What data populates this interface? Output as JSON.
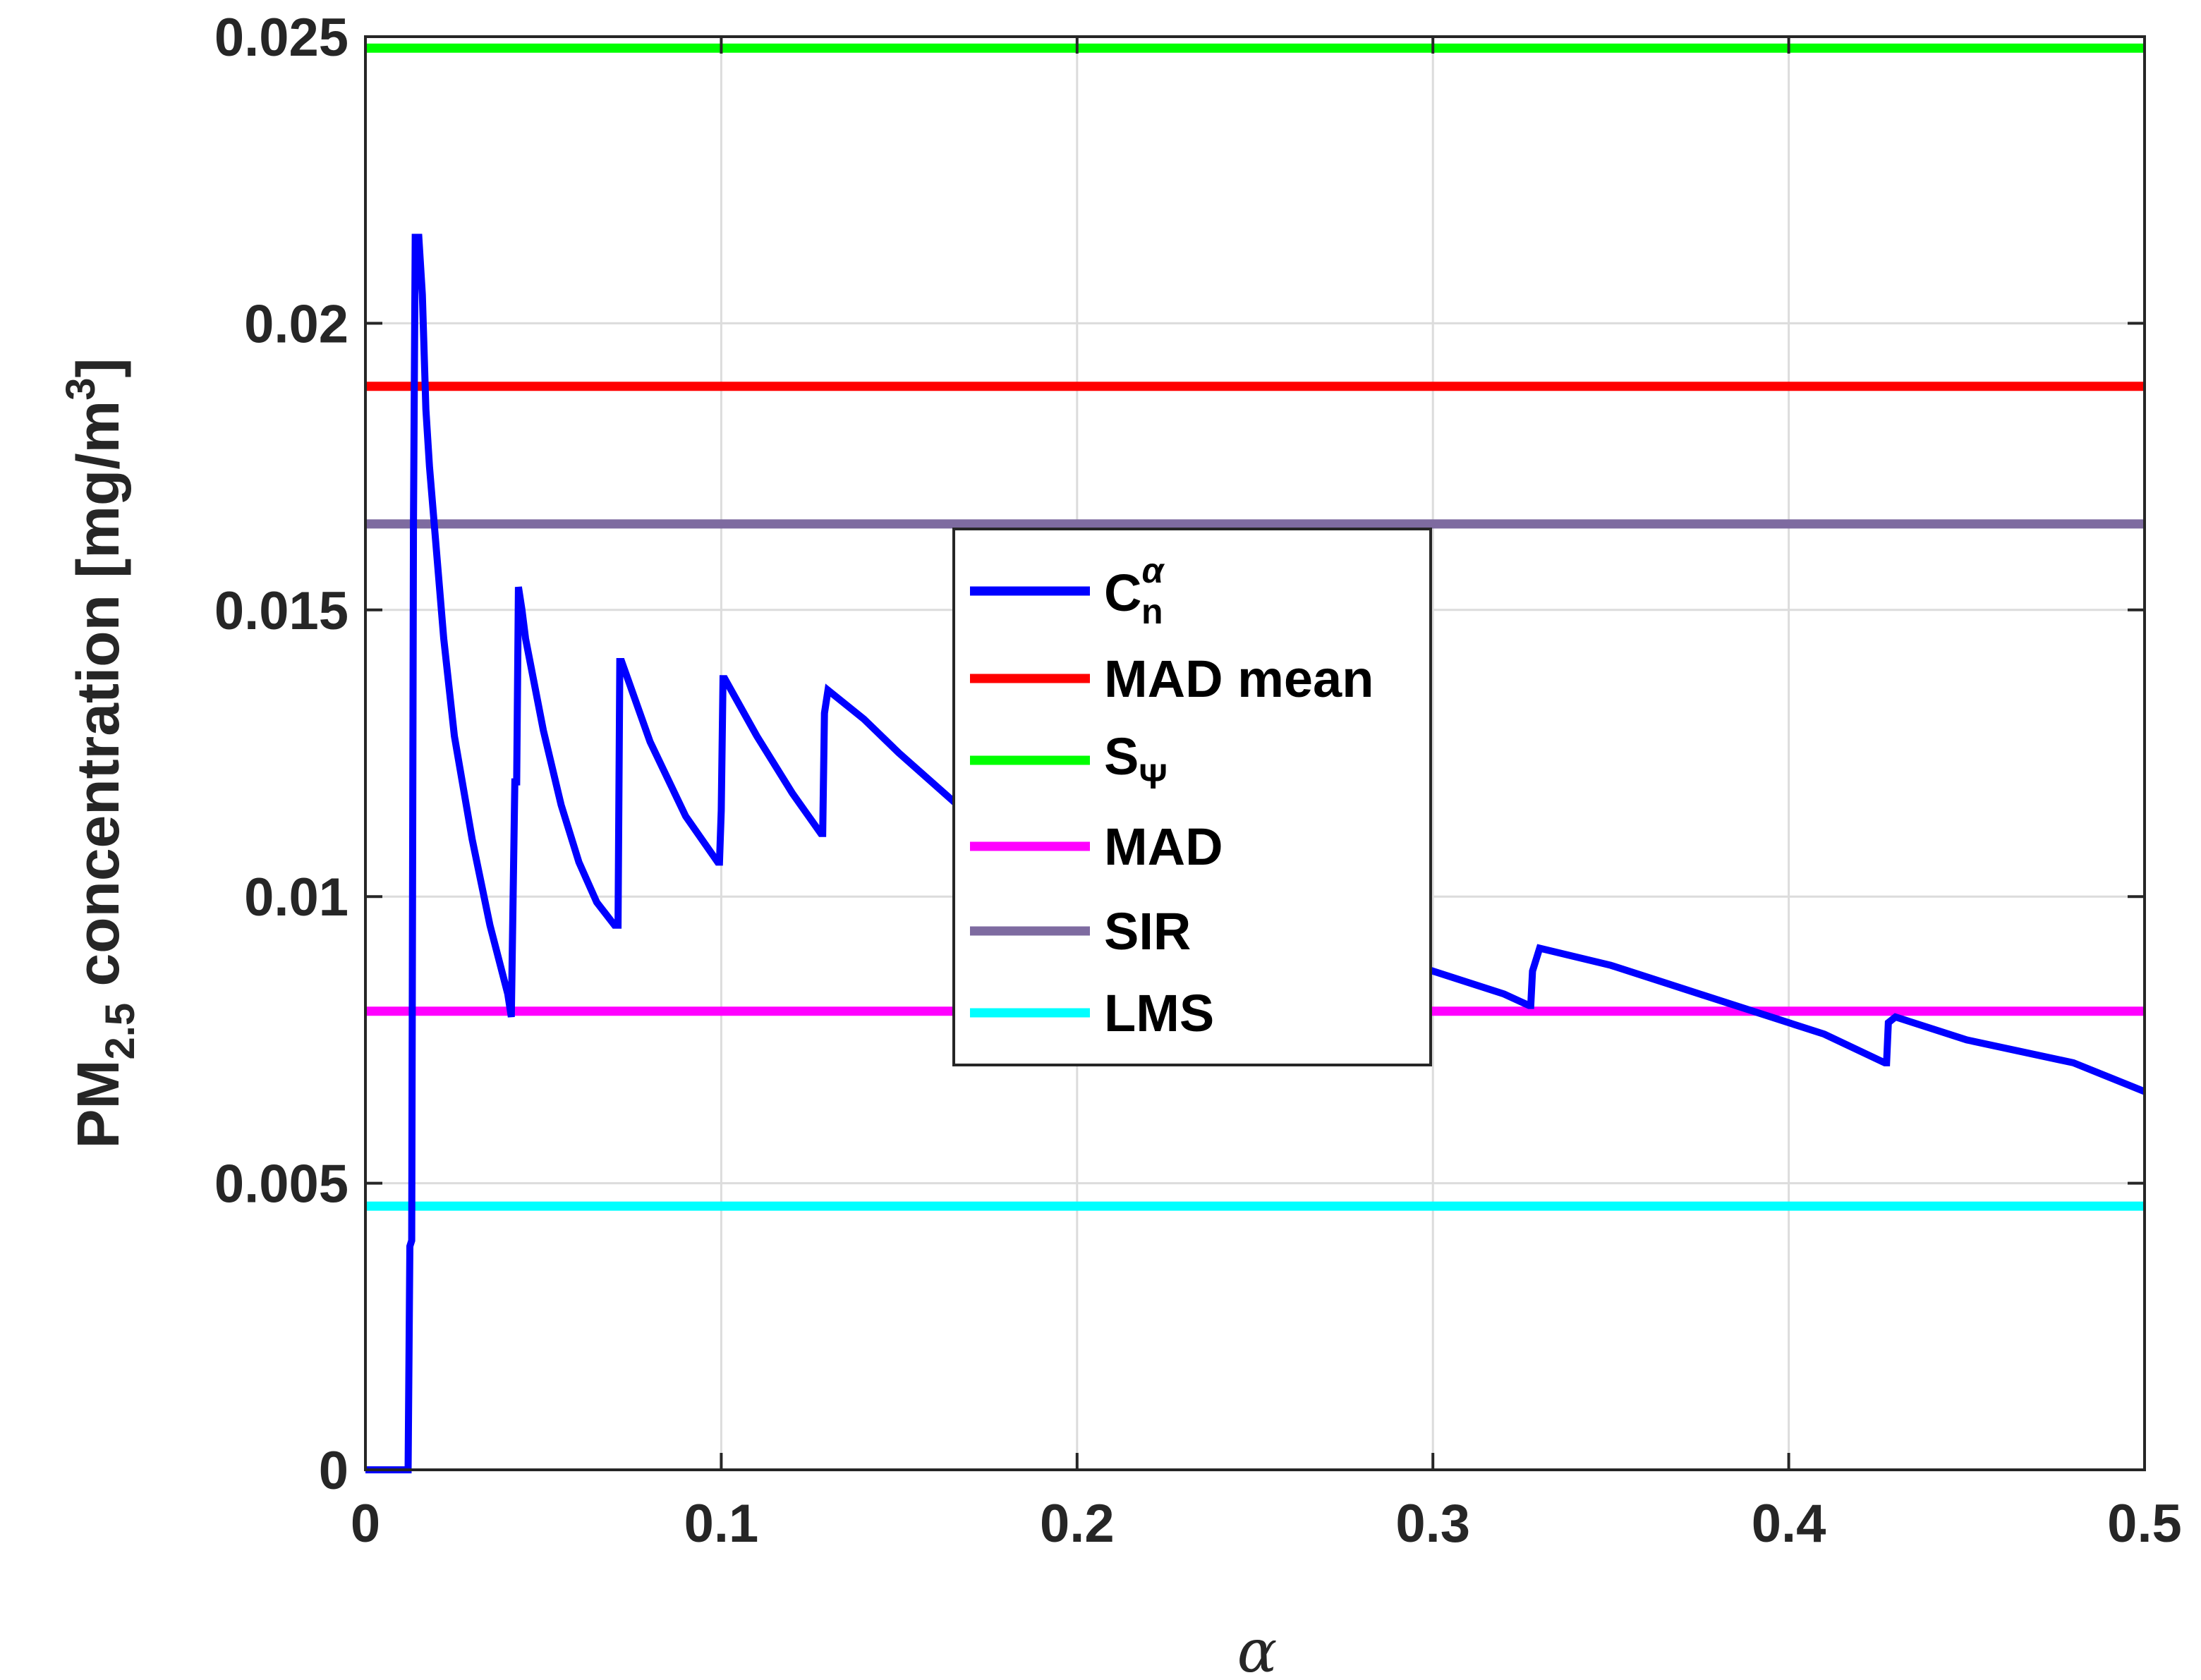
{
  "chart_data": {
    "type": "line",
    "xlabel": "α",
    "ylabel": {
      "base": "PM",
      "sub": "2.5",
      "rest": " concentration [mg/m",
      "sup": "3",
      "close": "]"
    },
    "xlim": [
      0,
      0.5
    ],
    "ylim": [
      0,
      0.025
    ],
    "xticks": [
      "0",
      "0.1",
      "0.2",
      "0.3",
      "0.4",
      "0.5"
    ],
    "yticks": [
      "0",
      "0.005",
      "0.01",
      "0.015",
      "0.02",
      "0.025"
    ],
    "grid": true,
    "legend_position": "center",
    "series": [
      {
        "name": "C_n^α",
        "legend": {
          "base": "C",
          "sub": "n",
          "sup": "α"
        },
        "color": "#0000ff",
        "kind": "curve",
        "x": [
          0,
          0.012,
          0.0125,
          0.013,
          0.0135,
          0.014,
          0.015,
          0.016,
          0.017,
          0.018,
          0.02,
          0.022,
          0.025,
          0.03,
          0.035,
          0.04,
          0.041,
          0.041,
          0.042,
          0.0425,
          0.043,
          0.044,
          0.045,
          0.05,
          0.055,
          0.06,
          0.065,
          0.07,
          0.071,
          0.071,
          0.0715,
          0.072,
          0.08,
          0.09,
          0.099,
          0.0995,
          0.1,
          0.1005,
          0.101,
          0.11,
          0.12,
          0.128,
          0.1285,
          0.129,
          0.13,
          0.14,
          0.15,
          0.17,
          0.2,
          0.25,
          0.29,
          0.3,
          0.32,
          0.327,
          0.3275,
          0.328,
          0.33,
          0.35,
          0.38,
          0.41,
          0.427,
          0.4275,
          0.428,
          0.43,
          0.45,
          0.48,
          0.5
        ],
        "y": [
          0,
          0,
          0.0039,
          0.004,
          0.0165,
          0.0215,
          0.0215,
          0.0205,
          0.0185,
          0.0175,
          0.016,
          0.0145,
          0.0128,
          0.011,
          0.0095,
          0.0083,
          0.0079,
          0.0079,
          0.012,
          0.012,
          0.0154,
          0.015,
          0.0145,
          0.0129,
          0.0116,
          0.0106,
          0.0099,
          0.0095,
          0.0095,
          0.0095,
          0.0141,
          0.0141,
          0.0127,
          0.0114,
          0.0106,
          0.0106,
          0.0115,
          0.0138,
          0.0138,
          0.0128,
          0.0118,
          0.0111,
          0.0111,
          0.0132,
          0.0136,
          0.0131,
          0.0125,
          0.0114,
          0.0105,
          0.0095,
          0.0089,
          0.0087,
          0.0083,
          0.0081,
          0.0081,
          0.0087,
          0.0091,
          0.0088,
          0.0082,
          0.0076,
          0.0071,
          0.0071,
          0.0078,
          0.0079,
          0.0075,
          0.0071,
          0.0066
        ]
      },
      {
        "name": "MAD mean",
        "color": "#ff0000",
        "kind": "hline",
        "value": 0.0189
      },
      {
        "name": "S_Ψ",
        "legend": {
          "base": "S",
          "sub": "Ψ"
        },
        "color": "#00ff00",
        "kind": "hline",
        "value": 0.0248
      },
      {
        "name": "MAD",
        "color": "#ff00ff",
        "kind": "hline",
        "value": 0.008
      },
      {
        "name": "SIR",
        "color": "#7e6ba0",
        "kind": "hline",
        "value": 0.0165
      },
      {
        "name": "LMS",
        "color": "#00ffff",
        "kind": "hline",
        "value": 0.0046
      }
    ]
  }
}
